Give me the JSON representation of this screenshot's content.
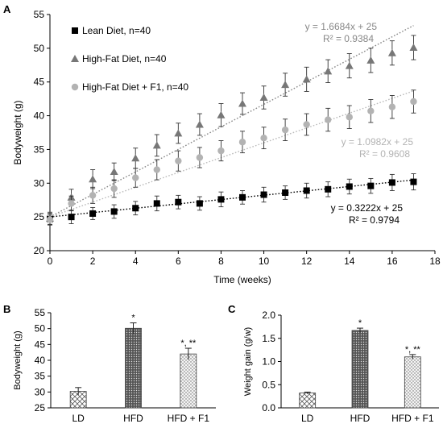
{
  "panels": [
    {
      "letter": "A"
    },
    {
      "letter": "B"
    },
    {
      "letter": "C"
    }
  ],
  "chart_data": [
    {
      "type": "scatter",
      "panel": "A",
      "xlabel": "Time (weeks)",
      "ylabel": "Bodyweight (g)",
      "xlim": [
        0,
        18
      ],
      "ylim": [
        20,
        55
      ],
      "xticks": [
        "0",
        "2",
        "4",
        "6",
        "8",
        "10",
        "12",
        "14",
        "16",
        "18"
      ],
      "yticks": [
        "20",
        "25",
        "30",
        "35",
        "40",
        "45",
        "50",
        "55"
      ],
      "grid": false,
      "legend_position": "top-left",
      "x": [
        0,
        1,
        2,
        3,
        4,
        5,
        6,
        7,
        8,
        9,
        10,
        11,
        12,
        13,
        14,
        15,
        16,
        17
      ],
      "series": [
        {
          "name": "Lean Diet, n=40",
          "marker": "square",
          "color": "#000000",
          "values": [
            24.7,
            25.0,
            25.5,
            25.8,
            26.3,
            27.0,
            27.2,
            27.0,
            27.6,
            27.9,
            28.3,
            28.6,
            28.9,
            29.1,
            29.5,
            29.6,
            30.1,
            30.2
          ],
          "errors": [
            0.8,
            1.0,
            0.9,
            1.0,
            1.0,
            1.1,
            1.0,
            1.0,
            1.1,
            1.0,
            1.1,
            1.0,
            1.1,
            1.1,
            1.1,
            1.1,
            1.2,
            1.2
          ],
          "trendline": {
            "equation": "y = 0.3222x + 25",
            "r2": "R² = 0.9794",
            "slope": 0.3222,
            "intercept": 25,
            "color": "#000000"
          }
        },
        {
          "name": "High-Fat Diet, n=40",
          "marker": "triangle",
          "color": "#777777",
          "values": [
            24.8,
            27.9,
            30.6,
            31.7,
            33.7,
            35.6,
            37.4,
            38.7,
            40.1,
            41.8,
            42.7,
            44.6,
            45.4,
            46.6,
            47.4,
            48.2,
            49.3,
            50.1
          ],
          "errors": [
            0.9,
            1.2,
            1.4,
            1.3,
            1.5,
            1.6,
            1.5,
            1.6,
            1.7,
            1.6,
            1.7,
            1.7,
            1.8,
            1.7,
            1.8,
            1.8,
            1.8,
            1.8
          ],
          "trendline": {
            "equation": "y = 1.6684x + 25",
            "r2": "R² = 0.9384",
            "slope": 1.6684,
            "intercept": 25,
            "color": "#888888"
          }
        },
        {
          "name": "High-Fat Diet + F1, n=40",
          "marker": "circle",
          "color": "#b3b3b3",
          "values": [
            24.6,
            27.0,
            28.2,
            29.2,
            30.8,
            32.0,
            33.3,
            33.8,
            34.8,
            36.1,
            36.7,
            37.9,
            38.7,
            39.4,
            39.8,
            40.7,
            41.3,
            42.1
          ],
          "errors": [
            0.8,
            1.1,
            1.2,
            1.3,
            1.4,
            1.5,
            1.5,
            1.5,
            1.5,
            1.6,
            1.6,
            1.6,
            1.6,
            1.7,
            1.7,
            1.7,
            1.7,
            1.7
          ],
          "trendline": {
            "equation": "y = 1.0982x + 25",
            "r2": "R² = 0.9608",
            "slope": 1.0982,
            "intercept": 25,
            "color": "#bbbbbb"
          }
        }
      ]
    },
    {
      "type": "bar",
      "panel": "B",
      "ylabel": "Bodyweight (g)",
      "ylim": [
        25,
        55
      ],
      "yticks": [
        "25",
        "30",
        "35",
        "40",
        "45",
        "50",
        "55"
      ],
      "categories": [
        "LD",
        "HFD",
        "HFD + F1"
      ],
      "values": [
        30.2,
        50.1,
        42.0
      ],
      "errors": [
        1.2,
        1.7,
        1.8
      ],
      "significance": [
        "",
        "*",
        "*, **"
      ],
      "patterns": [
        "diamond",
        "dense-dots",
        "sparse-dots"
      ]
    },
    {
      "type": "bar",
      "panel": "C",
      "ylabel": "Weight gain (g/w)",
      "ylim": [
        0,
        2.0
      ],
      "yticks": [
        "0.0",
        "0.5",
        "1.0",
        "1.5",
        "2.0"
      ],
      "categories": [
        "LD",
        "HFD",
        "HFD + F1"
      ],
      "values": [
        0.32,
        1.67,
        1.1
      ],
      "errors": [
        0.02,
        0.05,
        0.05
      ],
      "significance": [
        "",
        "*",
        "*, **"
      ],
      "patterns": [
        "diamond",
        "dense-dots",
        "sparse-dots"
      ]
    }
  ]
}
